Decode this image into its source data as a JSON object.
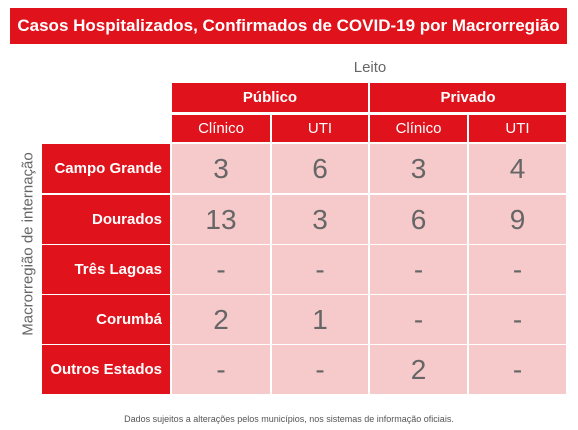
{
  "chart_data": {
    "type": "table",
    "title": "Casos Hospitalizados, Confirmados de COVID-19 por Macrorregião",
    "column_axis_label": "Leito",
    "row_axis_label": "Macrorregião de internação",
    "column_groups": [
      {
        "name": "Público",
        "columns": [
          "Clínico",
          "UTI"
        ]
      },
      {
        "name": "Privado",
        "columns": [
          "Clínico",
          "UTI"
        ]
      }
    ],
    "rows": [
      {
        "label": "Campo Grande",
        "values": [
          "3",
          "6",
          "3",
          "4"
        ]
      },
      {
        "label": "Dourados",
        "values": [
          "13",
          "3",
          "6",
          "9"
        ]
      },
      {
        "label": "Três Lagoas",
        "values": [
          "-",
          "-",
          "-",
          "-"
        ]
      },
      {
        "label": "Corumbá",
        "values": [
          "2",
          "1",
          "-",
          "-"
        ]
      },
      {
        "label": "Outros Estados",
        "values": [
          "-",
          "-",
          "2",
          "-"
        ]
      }
    ],
    "footnote": "Dados sujeitos a alterações pelos municípios, nos sistemas de informação oficiais."
  },
  "colors": {
    "accent": "#e0121b",
    "cell_fill": "#f6c9cb",
    "text_gray": "#666666"
  }
}
